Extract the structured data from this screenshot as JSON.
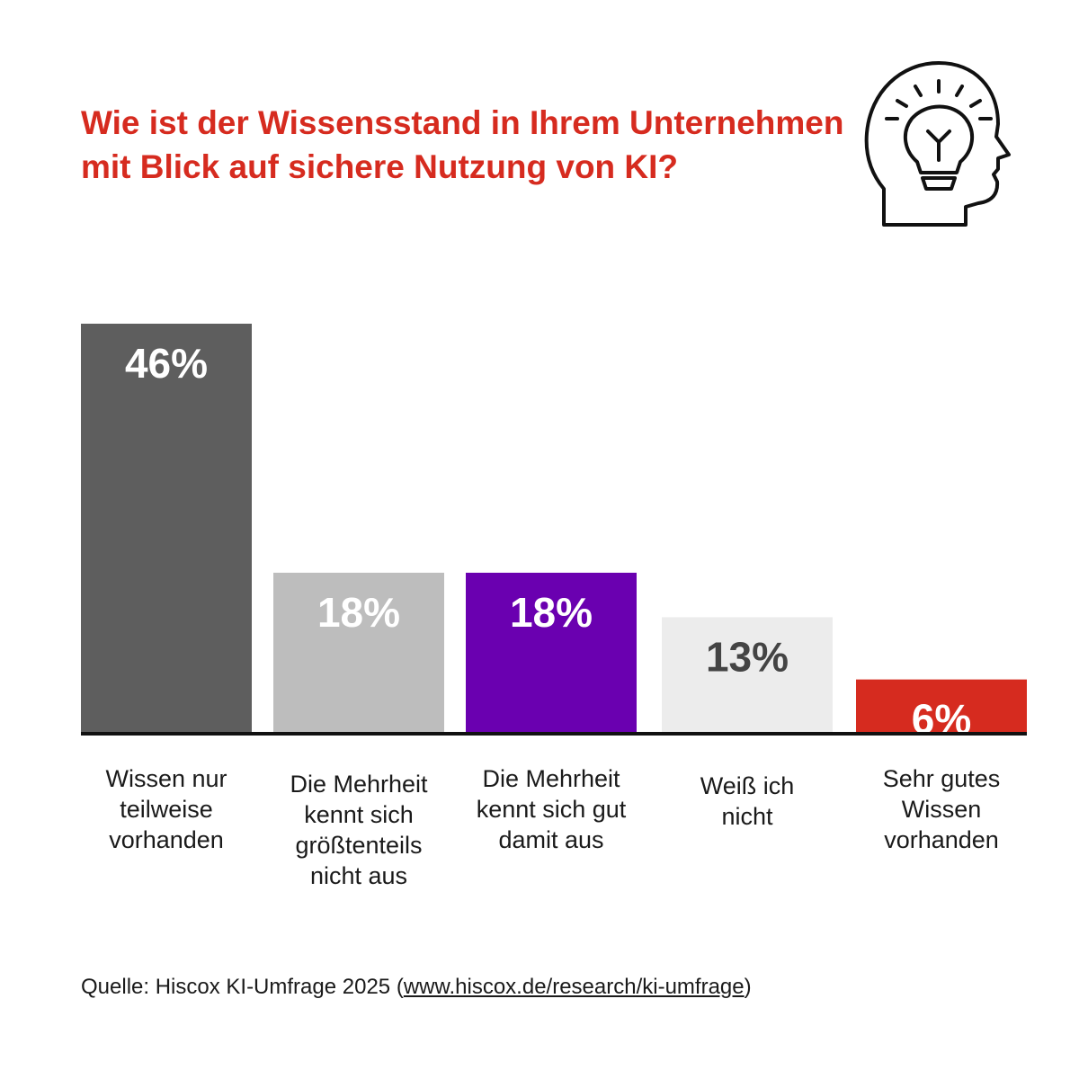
{
  "title": "Wie ist der Wissensstand in Ihrem Unternehmen mit Blick auf sichere Nutzung von KI?",
  "icon": "head-lightbulb-icon",
  "chart_data": {
    "type": "bar",
    "title": "Wie ist der Wissensstand in Ihrem Unternehmen mit Blick auf sichere Nutzung von KI?",
    "categories": [
      "Wissen nur teilweise vorhanden",
      "Die Mehrheit kennt sich größtenteils nicht aus",
      "Die Mehrheit kennt sich gut damit aus",
      "Weiß ich nicht",
      "Sehr gutes Wissen vorhanden"
    ],
    "category_lines": [
      "Wissen nur\nteilweise\nvorhanden",
      "Die Mehrheit\nkennt sich\ngrößtenteils\nnicht aus",
      "Die Mehrheit\nkennt sich gut\ndamit aus",
      "Weiß ich\nnicht",
      "Sehr gutes\nWissen\nvorhanden"
    ],
    "values": [
      46,
      18,
      18,
      13,
      6
    ],
    "value_labels": [
      "46%",
      "18%",
      "18%",
      "13%",
      "6%"
    ],
    "colors": [
      "#5e5e5e",
      "#bdbdbd",
      "#6a00b0",
      "#ececec",
      "#d62b1f"
    ],
    "label_colors": [
      "#ffffff",
      "#ffffff",
      "#ffffff",
      "#444444",
      "#ffffff"
    ],
    "unit": "%",
    "grid": false,
    "legend": "none"
  },
  "source": {
    "prefix": "Quelle: Hiscox KI-Umfrage 2025 (",
    "link_text": "www.hiscox.de/research/ki-umfrage",
    "suffix": ")"
  }
}
